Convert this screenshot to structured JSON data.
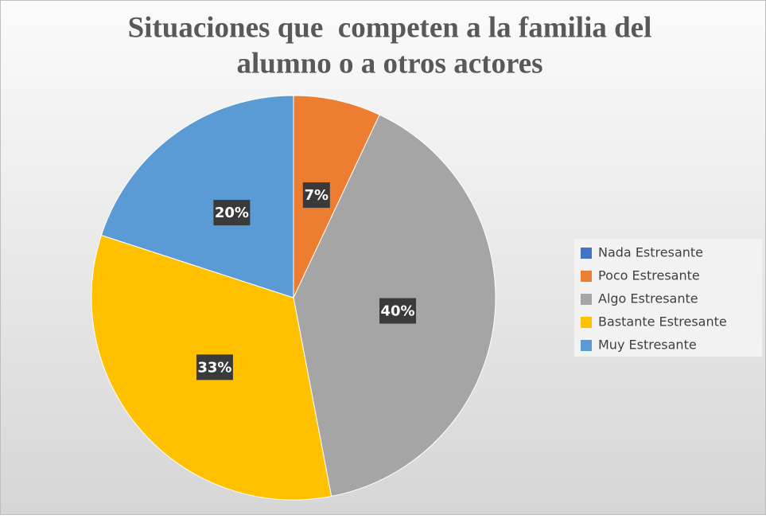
{
  "chart_data": {
    "type": "pie",
    "title": [
      "Situaciones que  competen a la familia del",
      "alumno o a otros actores"
    ],
    "categories": [
      "Nada Estresante",
      "Poco Estresante",
      "Algo Estresante",
      "Bastante Estresante",
      "Muy Estresante"
    ],
    "values": [
      0,
      7,
      40,
      33,
      20
    ],
    "value_labels": [
      null,
      "7%",
      "40%",
      "33%",
      "20%"
    ],
    "colors": [
      "#4472c4",
      "#ed7d31",
      "#a5a5a5",
      "#ffc000",
      "#5b9bd5"
    ],
    "legend": "right"
  }
}
